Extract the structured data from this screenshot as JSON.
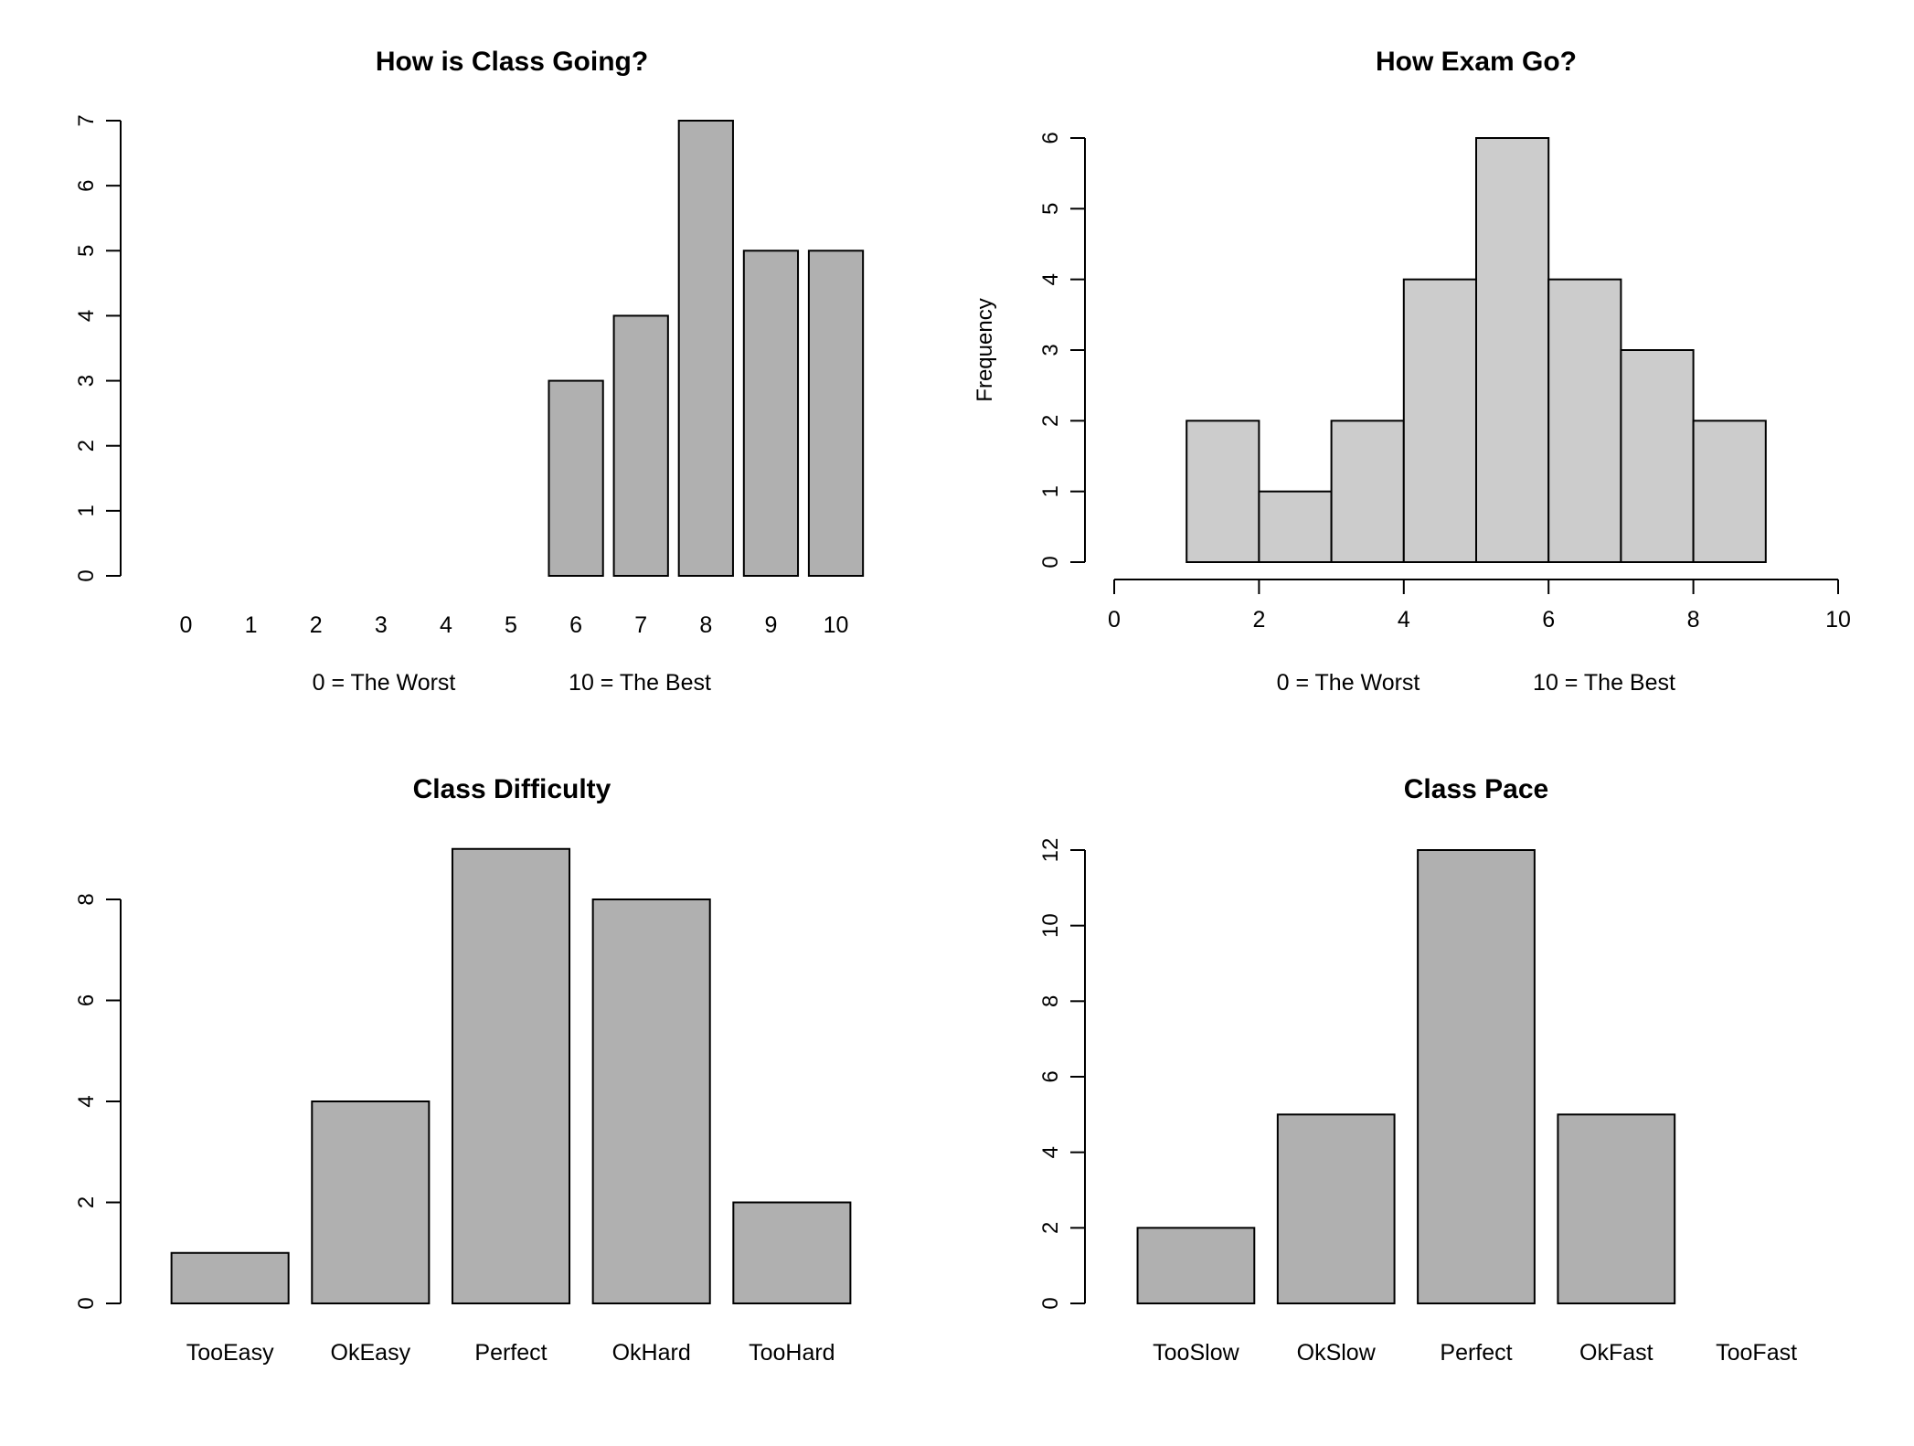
{
  "chart_data": [
    {
      "type": "bar",
      "title": "How is Class Going?",
      "categories": [
        "0",
        "1",
        "2",
        "3",
        "4",
        "5",
        "6",
        "7",
        "8",
        "9",
        "10"
      ],
      "values": [
        0,
        0,
        0,
        0,
        0,
        0,
        3,
        4,
        7,
        5,
        5
      ],
      "yticks": [
        0,
        1,
        2,
        3,
        4,
        5,
        6,
        7
      ],
      "ylim": [
        0,
        7
      ],
      "notes": [
        "0 = The Worst",
        "10 = The Best"
      ],
      "bar_color": "#b0b0b0",
      "grid": false
    },
    {
      "type": "histogram",
      "title": "How Exam Go?",
      "ylabel": "Frequency",
      "bins": [
        [
          1,
          2
        ],
        [
          2,
          3
        ],
        [
          3,
          4
        ],
        [
          4,
          5
        ],
        [
          5,
          6
        ],
        [
          6,
          7
        ],
        [
          7,
          8
        ],
        [
          8,
          9
        ]
      ],
      "values": [
        2,
        1,
        2,
        4,
        6,
        4,
        3,
        2
      ],
      "xticks": [
        0,
        2,
        4,
        6,
        8,
        10
      ],
      "xlim": [
        0,
        10
      ],
      "yticks": [
        0,
        1,
        2,
        3,
        4,
        5,
        6
      ],
      "ylim": [
        0,
        6
      ],
      "notes": [
        "0 = The Worst",
        "10 = The Best"
      ],
      "bar_color": "#cccccc",
      "grid": false
    },
    {
      "type": "bar",
      "title": "Class Difficulty",
      "categories": [
        "TooEasy",
        "OkEasy",
        "Perfect",
        "OkHard",
        "TooHard"
      ],
      "values": [
        1,
        4,
        9,
        8,
        2
      ],
      "yticks": [
        0,
        2,
        4,
        6,
        8
      ],
      "ylim": [
        0,
        9
      ],
      "bar_color": "#b0b0b0",
      "grid": false
    },
    {
      "type": "bar",
      "title": "Class Pace",
      "categories": [
        "TooSlow",
        "OkSlow",
        "Perfect",
        "OkFast",
        "TooFast"
      ],
      "values": [
        2,
        5,
        12,
        5,
        0
      ],
      "yticks": [
        0,
        2,
        4,
        6,
        8,
        10,
        12
      ],
      "ylim": [
        0,
        12
      ],
      "bar_color": "#b0b0b0",
      "grid": false
    }
  ]
}
